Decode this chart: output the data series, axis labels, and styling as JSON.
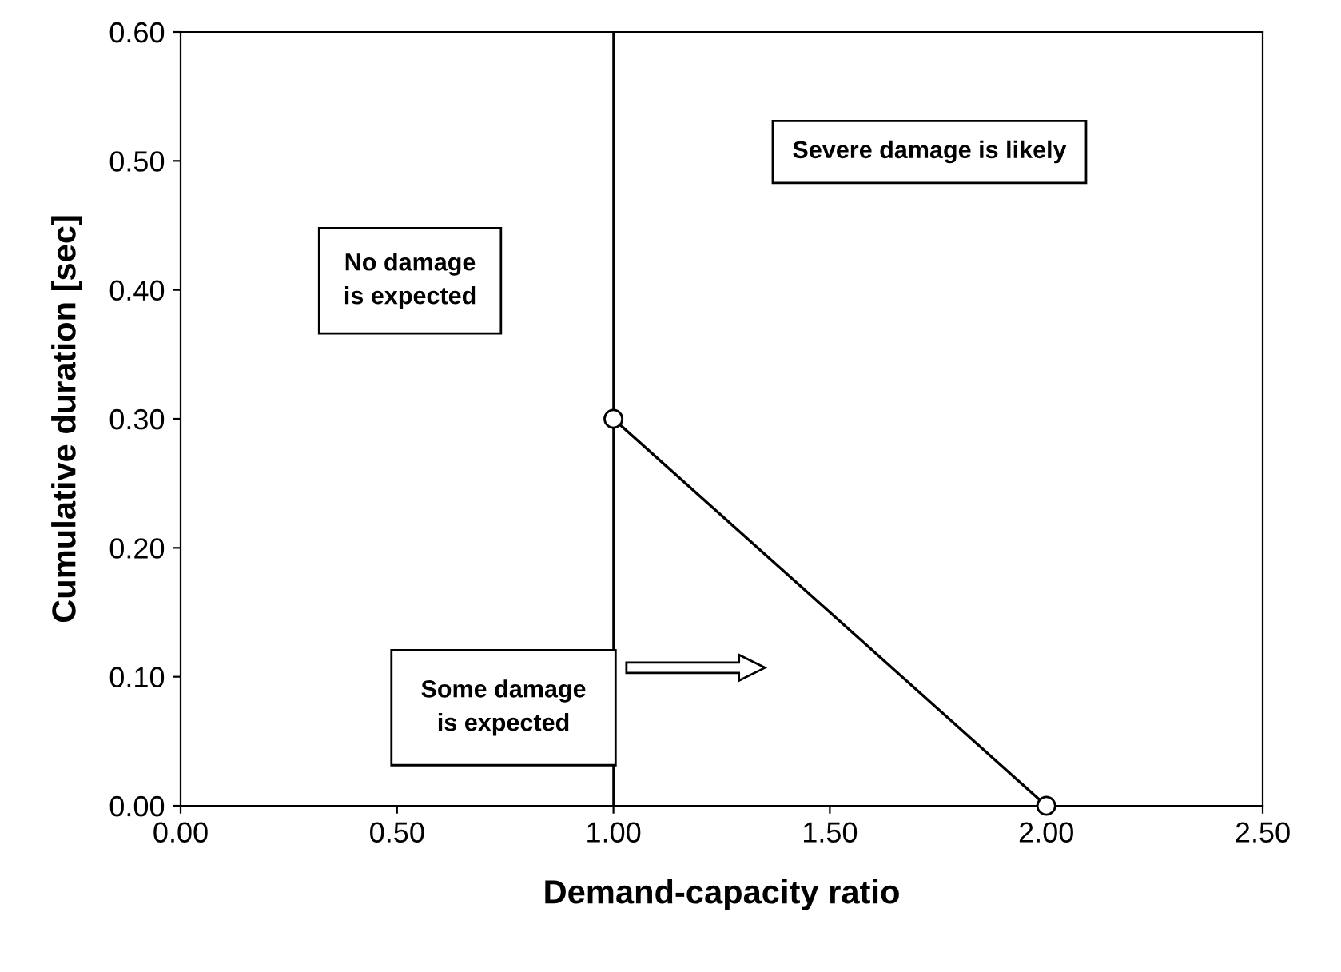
{
  "chart_data": {
    "type": "line",
    "xlabel": "Demand-capacity ratio",
    "ylabel": "Cumulative duration [sec]",
    "x": [
      1.0,
      2.0
    ],
    "series": [
      {
        "color": "#000000",
        "values": [
          0.3,
          0.0
        ]
      }
    ],
    "marker": "circle",
    "line_style": "solid",
    "grid": false,
    "legend": false,
    "xlim": [
      0,
      2.5
    ],
    "ylim": [
      0,
      0.6
    ],
    "xticks": [
      {
        "value": 0,
        "label": "0.00"
      },
      {
        "value": 0.5,
        "label": "0.50"
      },
      {
        "value": 1,
        "label": "1.00"
      },
      {
        "value": 1.5,
        "label": "1.50"
      },
      {
        "value": 2,
        "label": "2.00"
      },
      {
        "value": 2.5,
        "label": "2.50"
      }
    ],
    "yticks": [
      {
        "value": 0,
        "label": "0.00"
      },
      {
        "value": 0.1,
        "label": "0.10"
      },
      {
        "value": 0.2,
        "label": "0.20"
      },
      {
        "value": 0.3,
        "label": "0.30"
      },
      {
        "value": 0.4,
        "label": "0.40"
      },
      {
        "value": 0.5,
        "label": "0.50"
      },
      {
        "value": 0.6,
        "label": "0.60"
      }
    ],
    "ref_lines": [
      {
        "axis": "x",
        "value": 1.0,
        "color": "#000000"
      }
    ],
    "annotations": [
      "No damage\nis expected",
      "Severe damage is likely",
      "Some damage\nis expected"
    ]
  }
}
